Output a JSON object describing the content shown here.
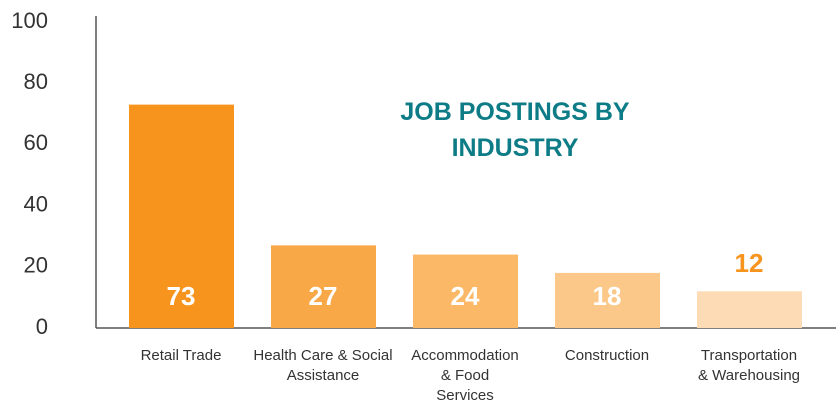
{
  "chart_data": {
    "type": "bar",
    "title": "JOB POSTINGS BY INDUSTRY",
    "categories": [
      "Retail Trade",
      "Health Care & Social Assistance",
      "Accommodation & Food Services",
      "Construction",
      "Transportation & Warehousing"
    ],
    "values": [
      73,
      27,
      24,
      18,
      12
    ],
    "colors": [
      "#f7941d",
      "#f9a847",
      "#fbb968",
      "#fcc88a",
      "#fddcb5"
    ],
    "ylim": [
      0,
      100
    ],
    "yticks": [
      0,
      20,
      40,
      60,
      80,
      100
    ],
    "grid": false
  }
}
